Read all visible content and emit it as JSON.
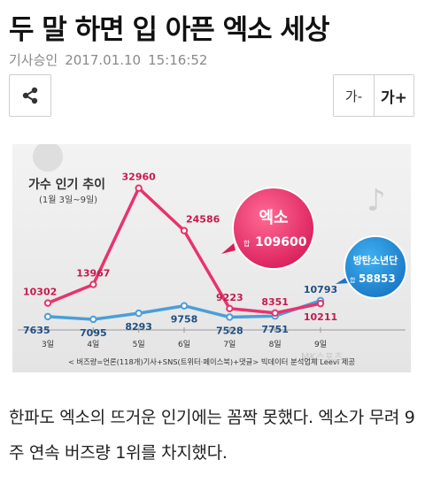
{
  "article": {
    "headline": "두 말 하면 입 아픈 엑소 세상",
    "approval_label": "기사승인",
    "date": "2017.01.10",
    "time": "15:16:52",
    "body": "한파도 엑소의 뜨거운 인기에는 꼼짝 못했다. 엑소가 무려 9주 연속 버즈량 1위를 차지했다."
  },
  "toolbar": {
    "share_icon": "share-icon",
    "font_decrease_label": "가-",
    "font_increase_label": "가+"
  },
  "chart_data": {
    "type": "line",
    "title": "가수 인기 추이",
    "subtitle": "(1월 3일~9일)",
    "categories": [
      "3일",
      "4일",
      "5일",
      "6일",
      "7일",
      "8일",
      "9일"
    ],
    "series": [
      {
        "name": "엑소",
        "color": "#e8336d",
        "values": [
          10302,
          13967,
          32960,
          24586,
          9223,
          8351,
          10211
        ]
      },
      {
        "name": "방탄소년단",
        "color": "#4a9fd8",
        "values": [
          7635,
          7095,
          8293,
          9758,
          7528,
          7751,
          10793
        ]
      }
    ],
    "badges": [
      {
        "name": "엑소",
        "total_label": "합",
        "total": "109600"
      },
      {
        "name": "방탄소년단",
        "total_label": "합",
        "total": "58853"
      }
    ],
    "footnote": "< 버즈량=언론(118개)기사+SNS(트위터·페이스북)+댓글> 빅데이터 분석업체 Leevi 제공",
    "watermark": "MK스포츠",
    "ylim": [
      5000,
      35000
    ]
  }
}
